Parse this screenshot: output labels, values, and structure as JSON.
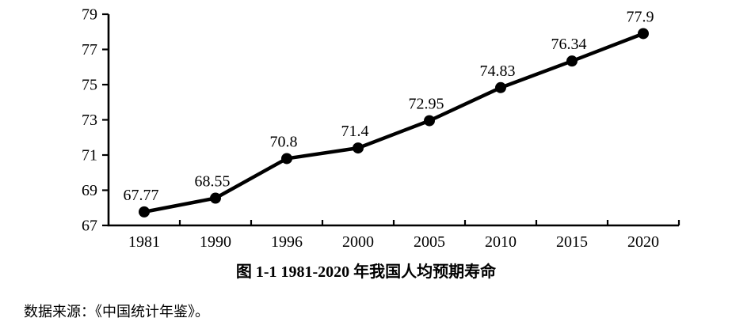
{
  "chart_data": {
    "type": "line",
    "title": "图 1-1 1981-2020 年我国人均预期寿命",
    "categories": [
      "1981",
      "1990",
      "1996",
      "2000",
      "2005",
      "2010",
      "2015",
      "2020"
    ],
    "values": [
      67.77,
      68.55,
      70.8,
      71.4,
      72.95,
      74.83,
      76.34,
      77.9
    ],
    "data_labels": [
      "67.77",
      "68.55",
      "70.8",
      "71.4",
      "72.95",
      "74.83",
      "76.34",
      "77.9"
    ],
    "xlabel": "",
    "ylabel": "",
    "ylim": [
      67,
      79
    ],
    "y_ticks": [
      67,
      69,
      71,
      73,
      75,
      77,
      79
    ],
    "grid": false,
    "legend": "none",
    "line_color": "#000000",
    "marker_color": "#000000",
    "axis_color": "#000000",
    "text_color": "#000000"
  },
  "source_note": "数据来源：《中国统计年鉴》。"
}
